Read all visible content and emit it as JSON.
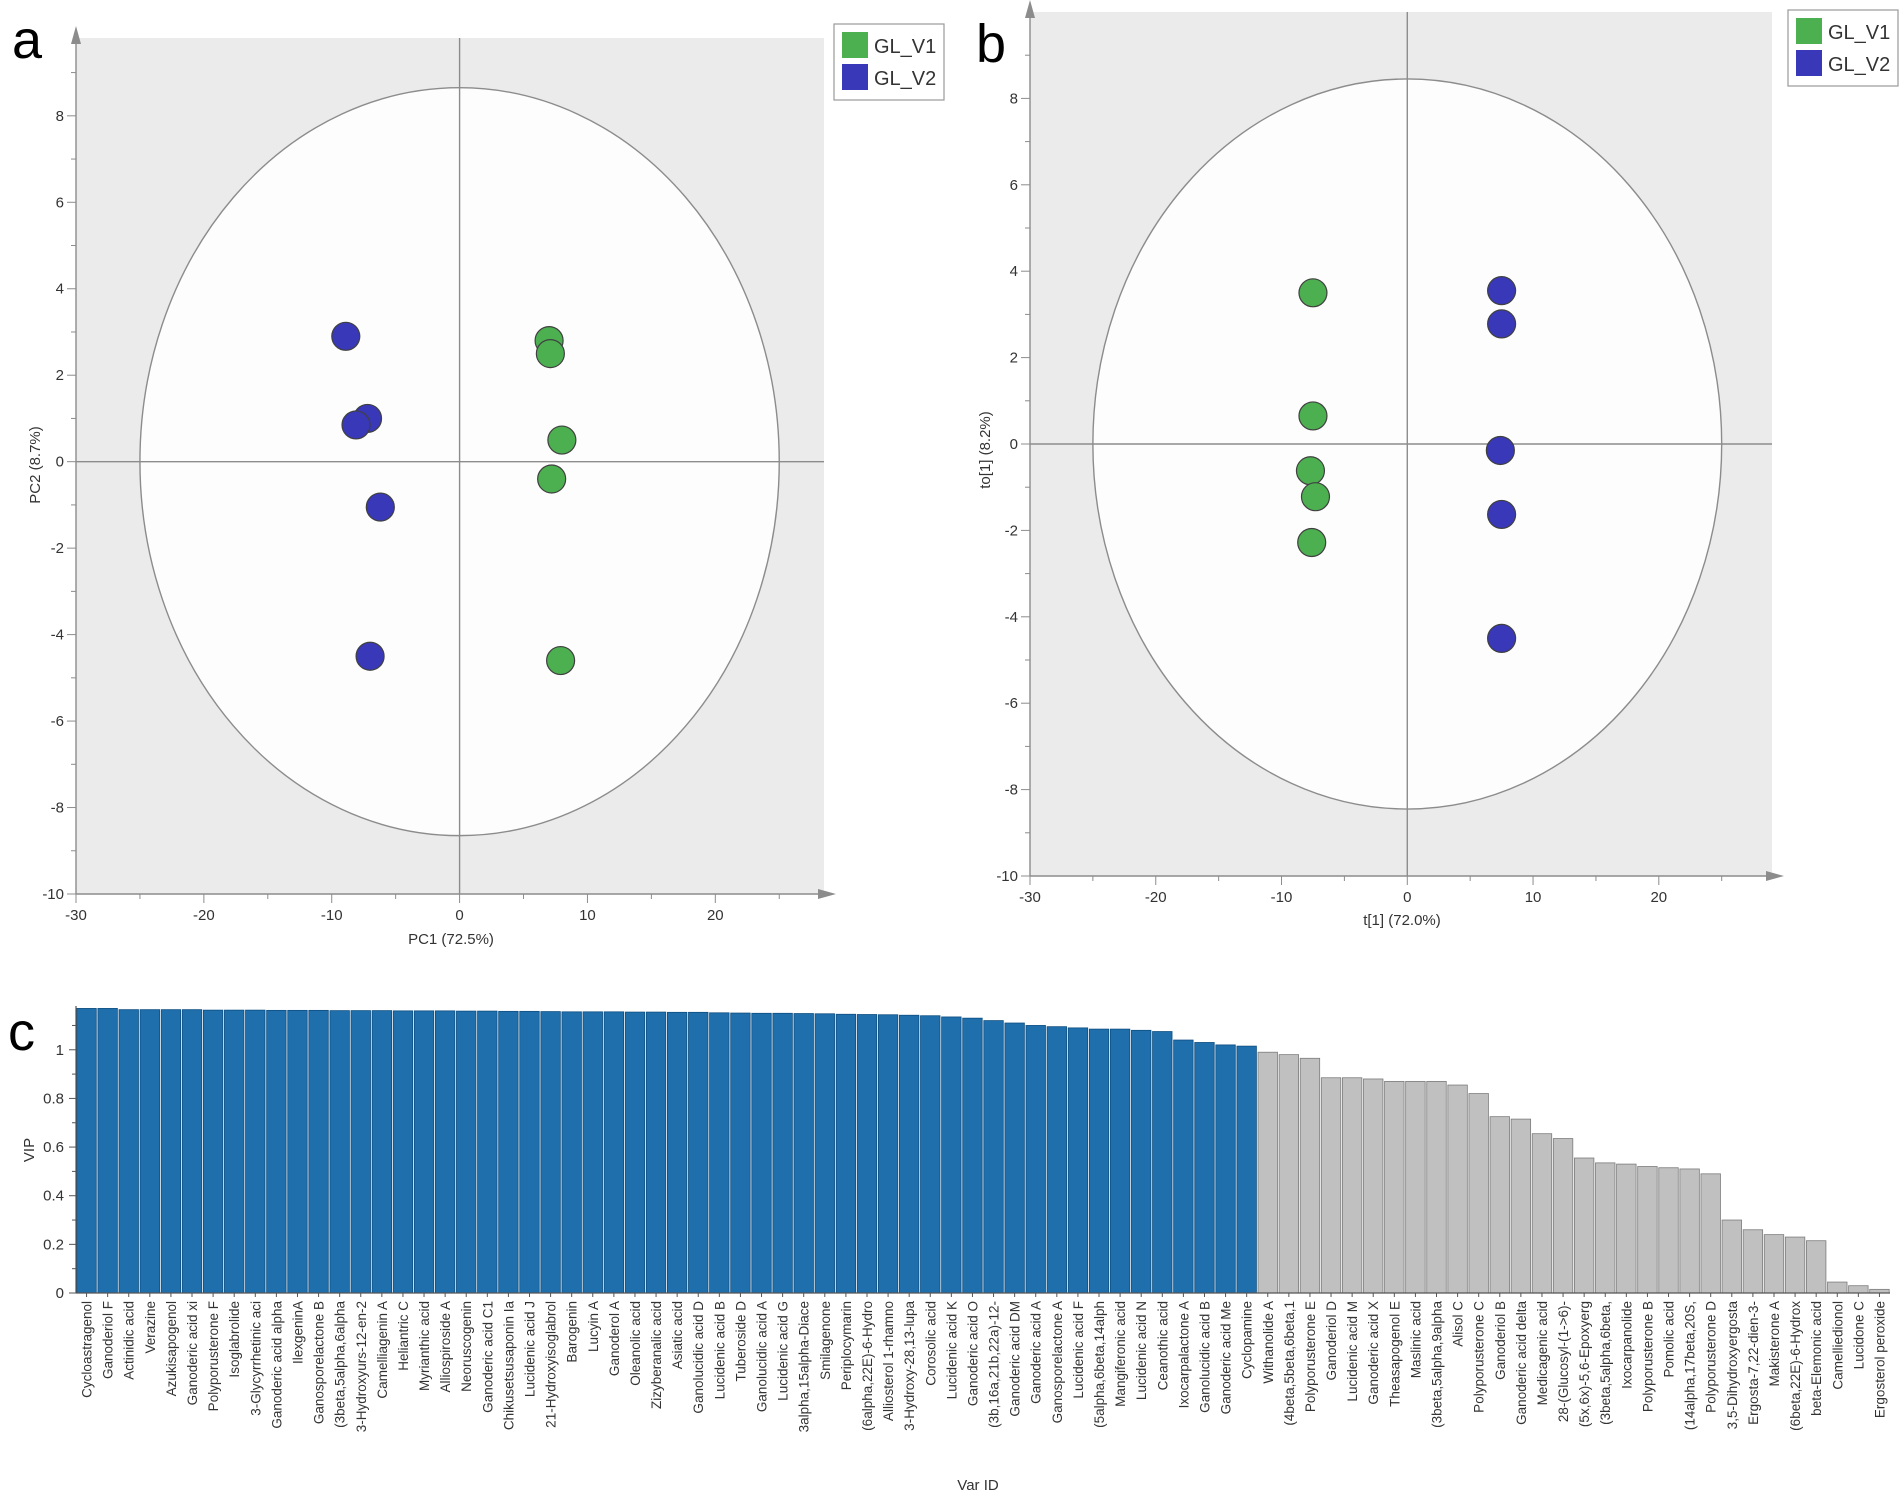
{
  "panels": {
    "a": {
      "letter": "a",
      "xlabel": "PC1 (72.5%)",
      "ylabel": "PC2 (8.7%)",
      "xticks": [
        -30,
        -20,
        -10,
        0,
        10,
        20
      ],
      "yticks": [
        -10,
        -8,
        -6,
        -4,
        -2,
        0,
        2,
        4,
        6,
        8
      ],
      "legend": [
        {
          "label": "GL_V1",
          "color": "#4caf50"
        },
        {
          "label": "GL_V2",
          "color": "#3838b8"
        }
      ]
    },
    "b": {
      "letter": "b",
      "xlabel": "t[1]  (72.0%)",
      "ylabel": "to[1]   (8.2%)",
      "xticks": [
        -30,
        -20,
        -10,
        0,
        10,
        20
      ],
      "yticks": [
        -10,
        -8,
        -6,
        -4,
        -2,
        0,
        2,
        4,
        6,
        8
      ],
      "legend": [
        {
          "label": "GL_V1",
          "color": "#4caf50"
        },
        {
          "label": "GL_V2",
          "color": "#3838b8"
        }
      ]
    },
    "c": {
      "letter": "c",
      "xlabel": "Var ID",
      "ylabel": "VIP",
      "yticks": [
        "0",
        "0.2",
        "0.4",
        "0.6",
        "0.8",
        "1"
      ]
    }
  },
  "chart_data": [
    {
      "type": "scatter",
      "panel": "a",
      "xlabel": "PC1 (72.5%)",
      "ylabel": "PC2 (8.7%)",
      "xlim": [
        -30,
        28.5
      ],
      "ylim": [
        -10,
        9.8
      ],
      "ellipse": {
        "cx": 0,
        "cy": 0,
        "rx": 25,
        "ry": 8.65
      },
      "series": [
        {
          "name": "GL_V1",
          "color": "#4caf50",
          "points": [
            [
              7,
              2.8
            ],
            [
              7.1,
              2.5
            ],
            [
              8,
              0.5
            ],
            [
              7.2,
              -0.4
            ],
            [
              7.9,
              -4.6
            ]
          ]
        },
        {
          "name": "GL_V2",
          "color": "#3838b8",
          "points": [
            [
              -8.9,
              2.9
            ],
            [
              -7.2,
              1.0
            ],
            [
              -8.1,
              0.85
            ],
            [
              -6.2,
              -1.05
            ],
            [
              -7,
              -4.5
            ]
          ]
        }
      ]
    },
    {
      "type": "scatter",
      "panel": "b",
      "xlabel": "t[1]  (72.0%)",
      "ylabel": "to[1]   (8.2%)",
      "xlim": [
        -30,
        29
      ],
      "ylim": [
        -10,
        10
      ],
      "ellipse": {
        "cx": 0,
        "cy": 0,
        "rx": 25,
        "ry": 8.45
      },
      "series": [
        {
          "name": "GL_V1",
          "color": "#4caf50",
          "points": [
            [
              -7.5,
              3.5
            ],
            [
              -7.5,
              0.65
            ],
            [
              -7.7,
              -0.62
            ],
            [
              -7.3,
              -1.22
            ],
            [
              -7.6,
              -2.28
            ]
          ]
        },
        {
          "name": "GL_V2",
          "color": "#3838b8",
          "points": [
            [
              7.5,
              3.55
            ],
            [
              7.5,
              2.78
            ],
            [
              7.4,
              -0.15
            ],
            [
              7.5,
              -1.63
            ],
            [
              7.5,
              -4.5
            ]
          ]
        }
      ]
    },
    {
      "type": "bar",
      "panel": "c",
      "xlabel": "Var ID",
      "ylabel": "VIP",
      "ylim": [
        0,
        1.18
      ],
      "threshold": 1,
      "color_above": "#1f6fad",
      "color_below": "#c0c0c0",
      "categories": [
        "Cycloastragenol",
        "Ganoderiol F",
        "Actinidic acid",
        "Verazine",
        "Azukisapogenol",
        "Ganoderic acid xi",
        "Polyporusterone F",
        "Isoglabrolide",
        "3-Glycyrrhetinic aci",
        "Ganoderic acid alpha",
        "IlexgeninA",
        "Ganosporelactone B",
        "(3beta,5alpha,6alpha",
        "3-Hydroxyurs-12-en-2",
        "Camelliagenin A",
        "Heliantric C",
        "Myrianthic acid",
        "Alliospiroside A",
        "Neoruscogenin",
        "Ganoderic acid C1",
        "Chikusetsusaponin Ia",
        "Lucidenic acid J",
        "21-Hydroxyisoglabrol",
        "Barogenin",
        "Lucyin A",
        "Ganoderol A",
        "Oleanolic acid",
        "Zizyberanalic acid",
        "Asiatic acid",
        "Ganolucidic acid D",
        "Lucidenic acid B",
        "Tuberoside D",
        "Ganolucidic acid A",
        "Lucidenic acid G",
        "3alpha,15alpha-Diace",
        "Smilagenone",
        "Periplocymarin",
        "(6alpha,22E)-6-Hydro",
        "Alliosterol 1-rhamno",
        "3-Hydroxy-28,13-lupa",
        "Corosolic acid",
        "Lucidenic acid K",
        "Ganoderic acid O",
        "(3b,16a,21b,22a)-12-",
        "Ganoderic acid DM",
        "Ganoderic acid A",
        "Ganosporelactone A",
        "Lucidenic acid F",
        "(5alpha,6beta,14alph",
        "Mangiferonic acid",
        "Lucidenic acid N",
        "Ceanothic acid",
        "Ixocarpalactone A",
        "Ganolucidic acid B",
        "Ganoderic acid Me",
        "Cyclopamine",
        "Withanolide A",
        "(4beta,5beta,6beta,1",
        "Polyporusterone E",
        "Ganoderiol D",
        "Lucidenic acid M",
        "Ganoderic acid X",
        "Theasapogenol E",
        "Maslinic acid",
        "(3beta,5alpha,9alpha",
        "Alisol C",
        "Polyporusterone C",
        "Ganoderiol B",
        "Ganoderic acid delta",
        "Medicagenic acid",
        "28-(Glucosyl-(1->6)-",
        "(5x,6x)-5,6-Epoxyerg",
        "(3beta,5alpha,6beta,",
        "Ixocarpanolide",
        "Polyporusterone B",
        "Pomolic acid",
        "(14alpha,17beta,20S,",
        "Polyporusterone D",
        "3,5-Dihydroxyergosta",
        "Ergosta-7,22-dien-3-",
        "Makisterone A",
        "(6beta,22E)-6-Hydrox",
        "beta-Elemonic acid",
        "Camelliedionol",
        "Lucidone C",
        "Ergosterol peroxide"
      ],
      "values": [
        1.17,
        1.17,
        1.165,
        1.165,
        1.165,
        1.165,
        1.163,
        1.163,
        1.163,
        1.162,
        1.162,
        1.162,
        1.161,
        1.161,
        1.161,
        1.16,
        1.16,
        1.16,
        1.159,
        1.159,
        1.158,
        1.158,
        1.157,
        1.156,
        1.156,
        1.156,
        1.155,
        1.155,
        1.154,
        1.154,
        1.152,
        1.151,
        1.15,
        1.15,
        1.149,
        1.148,
        1.146,
        1.145,
        1.144,
        1.142,
        1.14,
        1.135,
        1.13,
        1.12,
        1.11,
        1.1,
        1.095,
        1.09,
        1.085,
        1.085,
        1.08,
        1.075,
        1.04,
        1.03,
        1.02,
        1.015,
        0.99,
        0.98,
        0.965,
        0.885,
        0.885,
        0.88,
        0.87,
        0.87,
        0.87,
        0.855,
        0.82,
        0.725,
        0.715,
        0.655,
        0.635,
        0.555,
        0.535,
        0.53,
        0.52,
        0.515,
        0.51,
        0.49,
        0.3,
        0.26,
        0.24,
        0.23,
        0.215,
        0.045,
        0.03,
        0.015
      ]
    }
  ]
}
